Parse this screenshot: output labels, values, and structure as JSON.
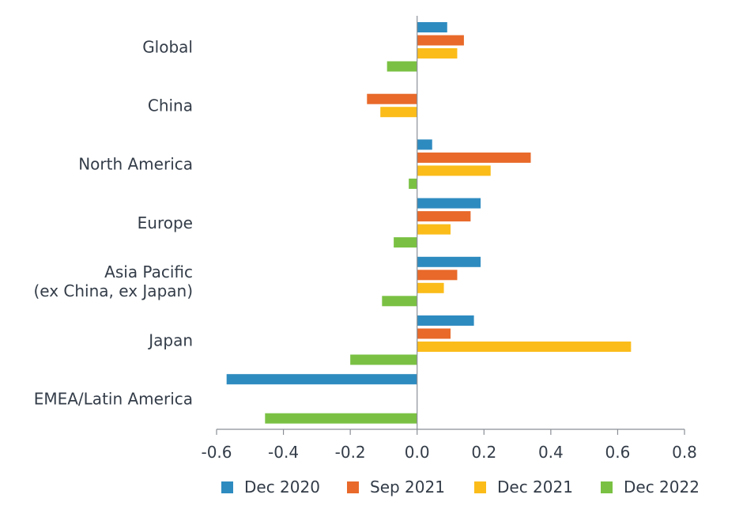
{
  "chart_data": {
    "type": "bar",
    "orientation": "horizontal",
    "categories": [
      "Global",
      "China",
      "North America",
      "Europe",
      "Asia Pacific\n(ex China, ex Japan)",
      "Japan",
      "EMEA/Latin America"
    ],
    "series": [
      {
        "name": "Dec 2020",
        "color": "#2e8bc0",
        "values": [
          0.09,
          null,
          0.045,
          0.19,
          0.19,
          0.17,
          -0.57
        ]
      },
      {
        "name": "Sep 2021",
        "color": "#e8692a",
        "values": [
          0.14,
          -0.15,
          0.34,
          0.16,
          0.12,
          0.1,
          null
        ]
      },
      {
        "name": "Dec 2021",
        "color": "#fbbc1a",
        "values": [
          0.12,
          -0.11,
          0.22,
          0.1,
          0.08,
          0.64,
          null
        ]
      },
      {
        "name": "Dec 2022",
        "color": "#7ac143",
        "values": [
          -0.09,
          null,
          -0.025,
          -0.07,
          -0.105,
          -0.2,
          -0.455
        ]
      }
    ],
    "xlim": [
      -0.6,
      0.8
    ],
    "xticks": [
      "-0.6",
      "-0.4",
      "-0.2",
      "0.0",
      "0.2",
      "0.4",
      "0.6",
      "0.8"
    ],
    "grid": false,
    "legend_position": "bottom"
  }
}
